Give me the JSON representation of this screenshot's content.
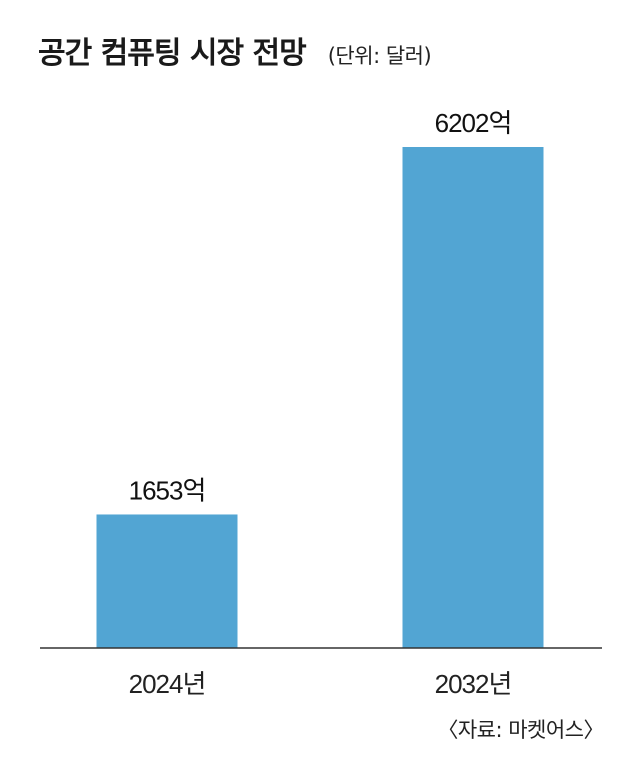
{
  "title": "공간 컴퓨팅 시장 전망",
  "unit_note": "(단위: 달러)",
  "source": "〈자료: 마켓어스〉",
  "chart_data": {
    "type": "bar",
    "categories": [
      "2024년",
      "2032년"
    ],
    "values": [
      1653,
      6202
    ],
    "value_labels": [
      "1653억",
      "6202억"
    ],
    "value_unit": "억 달러",
    "bar_color": "#52a5d3",
    "title": "공간 컴퓨팅 시장 전망",
    "xlabel": "",
    "ylabel": "",
    "grid": false,
    "legend": "none"
  }
}
